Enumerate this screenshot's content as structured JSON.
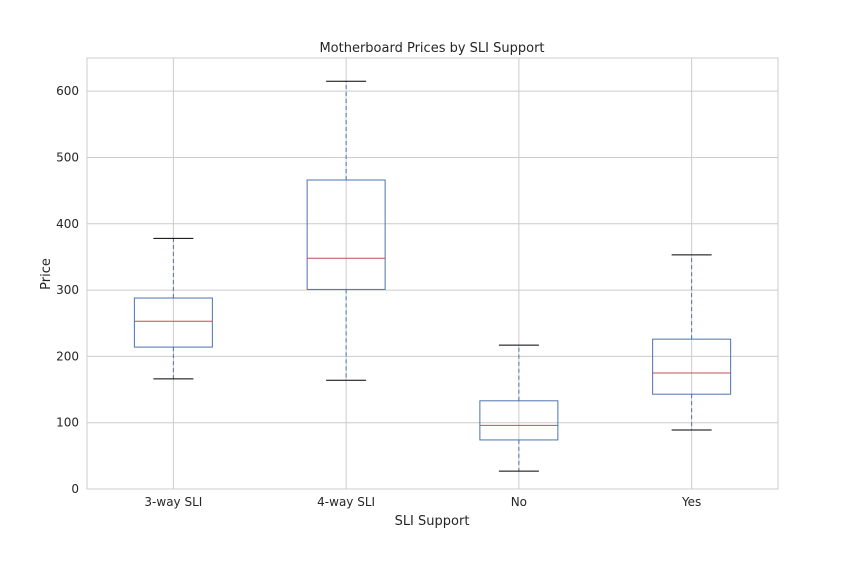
{
  "chart_data": {
    "type": "box",
    "title": "Motherboard Prices by SLI Support",
    "xlabel": "SLI Support",
    "ylabel": "Price",
    "ylim": [
      0,
      650
    ],
    "yticks": [
      0,
      100,
      200,
      300,
      400,
      500,
      600
    ],
    "grid": true,
    "categories": [
      "3-way SLI",
      "4-way SLI",
      "No",
      "Yes"
    ],
    "boxes": [
      {
        "whisker_low": 166,
        "q1": 214,
        "median": 253,
        "q3": 288,
        "whisker_high": 378
      },
      {
        "whisker_low": 164,
        "q1": 301,
        "median": 348,
        "q3": 466,
        "whisker_high": 615
      },
      {
        "whisker_low": 27,
        "q1": 74,
        "median": 96,
        "q3": 133,
        "whisker_high": 217
      },
      {
        "whisker_low": 89,
        "q1": 143,
        "median": 175,
        "q3": 226,
        "whisker_high": 353
      }
    ],
    "colors": {
      "box": "#4c72b0",
      "median": "#c44e52",
      "cap": "#000000",
      "grid": "#cccccc"
    }
  }
}
